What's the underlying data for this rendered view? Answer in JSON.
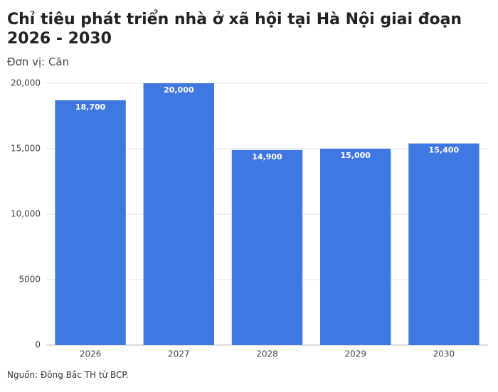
{
  "chart_data": {
    "type": "bar",
    "title": "Chỉ tiêu phát triển nhà ở xã hội tại Hà Nội giai đoạn 2026 - 2030",
    "subtitle": "Đơn vị: Căn",
    "source": "Nguồn: Đông Bắc TH từ BCP.",
    "categories": [
      "2026",
      "2027",
      "2028",
      "2029",
      "2030"
    ],
    "values": [
      18700,
      20000,
      14900,
      15000,
      15400
    ],
    "value_labels": [
      "18,700",
      "20,000",
      "14,900",
      "15,000",
      "15,400"
    ],
    "color": "#3f78e0",
    "ylim": [
      0,
      20000
    ],
    "yticks": [
      0,
      5000,
      {
        "value": 10000,
        "label": "10,000"
      },
      {
        "value": 15000,
        "label": "15,000"
      },
      {
        "value": 20000,
        "label": "20,000"
      }
    ],
    "grid": true
  }
}
